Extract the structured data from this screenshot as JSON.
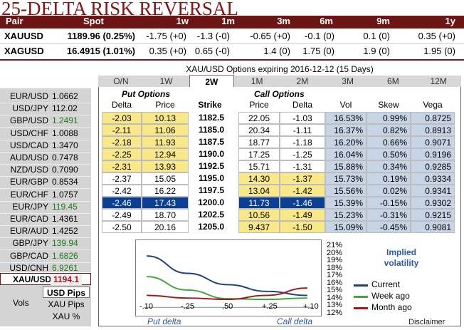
{
  "title": "25-DELTA RISK REVERSAL",
  "rr": {
    "headers": [
      "Pair",
      "Spot",
      "1w",
      "1m",
      "3m",
      "6m",
      "9m",
      "1y"
    ],
    "rows": [
      {
        "pair": "XAUUSD",
        "spot": "1189.96 (0.25%)",
        "vals": [
          "-1.75 (+0)",
          "-1.3 (-0)",
          "-0.65 (+0)",
          "-0.1 (0)",
          "0.1 (0)",
          "0.35 (+0)"
        ]
      },
      {
        "pair": "XAGUSD",
        "spot": "16.4915 (1.01%)",
        "vals": [
          "0.35 (+0)",
          "0.65 (-0)",
          "1.4 (0)",
          "1.75 (0)",
          "1.9 (0)",
          "1.95 (0)"
        ]
      }
    ]
  },
  "currencies": [
    {
      "pair": "EUR/USD",
      "value": "1.0662",
      "color": "#000000"
    },
    {
      "pair": "USD/JPY",
      "value": "112.02",
      "color": "#000000"
    },
    {
      "pair": "GBP/USD",
      "value": "1.2491",
      "color": "#1c7a1c"
    },
    {
      "pair": "USD/CHF",
      "value": "1.0088",
      "color": "#000000"
    },
    {
      "pair": "USD/CAD",
      "value": "1.3470",
      "color": "#000000"
    },
    {
      "pair": "AUD/USD",
      "value": "0.7478",
      "color": "#000000"
    },
    {
      "pair": "NZD/USD",
      "value": "0.7090",
      "color": "#000000"
    },
    {
      "pair": "EUR/GBP",
      "value": "0.8534",
      "color": "#000000"
    },
    {
      "pair": "EUR/CHF",
      "value": "1.0757",
      "color": "#000000"
    },
    {
      "pair": "EUR/JPY",
      "value": "119.45",
      "color": "#1c7a1c"
    },
    {
      "pair": "EUR/CAD",
      "value": "1.4361",
      "color": "#000000"
    },
    {
      "pair": "EUR/AUD",
      "value": "1.4252",
      "color": "#000000"
    },
    {
      "pair": "GBP/JPY",
      "value": "139.94",
      "color": "#1c7a1c"
    },
    {
      "pair": "GBP/CAD",
      "value": "1.6826",
      "color": "#1c7a1c"
    },
    {
      "pair": "USD/CNH",
      "value": "6.9261",
      "color": "#1c7a1c"
    }
  ],
  "xau": {
    "pair": "XAU/USD",
    "value": "1194.1"
  },
  "vols": {
    "label": "Vols",
    "options": [
      "USD Pips",
      "XAU Pips",
      "XAU %"
    ],
    "selected": 0
  },
  "options": {
    "title": "XAU/USD Options expiring 2016-12-12 (15 Days)",
    "tabs": [
      "O/N",
      "1W",
      "2W",
      "1M",
      "2M",
      "3M",
      "6M",
      "12M"
    ],
    "active_tab": 2,
    "put_label": "Put Options",
    "call_label": "Call Options",
    "col_headers": {
      "delta": "Delta",
      "price": "Price",
      "strike": "Strike",
      "call_price": "Price",
      "call_delta": "Delta",
      "vol": "Vol",
      "skew": "Skew",
      "vega": "Vega"
    },
    "selected_row": 7,
    "rows": [
      {
        "pdelta": "-2.03",
        "pprice": "10.13",
        "strike": "1182.5",
        "cprice": "22.05",
        "cdelta": "-1.03",
        "vol": "16.53%",
        "skew": "0.99%",
        "vega": "0.8725",
        "putHL": true,
        "callHL": false
      },
      {
        "pdelta": "-2.11",
        "pprice": "11.06",
        "strike": "1185.0",
        "cprice": "20.34",
        "cdelta": "-1.11",
        "vol": "16.37%",
        "skew": "0.82%",
        "vega": "0.8913",
        "putHL": true,
        "callHL": false
      },
      {
        "pdelta": "-2.18",
        "pprice": "11.93",
        "strike": "1187.5",
        "cprice": "18.77",
        "cdelta": "-1.18",
        "vol": "16.20%",
        "skew": "0.66%",
        "vega": "0.9071",
        "putHL": true,
        "callHL": false
      },
      {
        "pdelta": "-2.25",
        "pprice": "12.94",
        "strike": "1190.0",
        "cprice": "17.25",
        "cdelta": "-1.25",
        "vol": "16.04%",
        "skew": "0.50%",
        "vega": "0.9196",
        "putHL": true,
        "callHL": false
      },
      {
        "pdelta": "-2.31",
        "pprice": "13.93",
        "strike": "1192.5",
        "cprice": "15.71",
        "cdelta": "-1.31",
        "vol": "15.88%",
        "skew": "0.34%",
        "vega": "0.9285",
        "putHL": true,
        "callHL": false
      },
      {
        "pdelta": "-2.37",
        "pprice": "15.05",
        "strike": "1195.0",
        "cprice": "14.30",
        "cdelta": "-1.37",
        "vol": "15.73%",
        "skew": "0.19%",
        "vega": "0.9334",
        "putHL": false,
        "callHL": true
      },
      {
        "pdelta": "-2.42",
        "pprice": "16.22",
        "strike": "1197.5",
        "cprice": "13.04",
        "cdelta": "-1.42",
        "vol": "15.56%",
        "skew": "0.02%",
        "vega": "0.9341",
        "putHL": false,
        "callHL": true
      },
      {
        "pdelta": "-2.46",
        "pprice": "17.43",
        "strike": "1200.0",
        "cprice": "11.73",
        "cdelta": "-1.46",
        "vol": "15.39%",
        "skew": "-0.15%",
        "vega": "0.9302",
        "putHL": false,
        "callHL": true
      },
      {
        "pdelta": "-2.49",
        "pprice": "18.70",
        "strike": "1202.5",
        "cprice": "10.56",
        "cdelta": "-1.49",
        "vol": "15.23%",
        "skew": "-0.31%",
        "vega": "0.9215",
        "putHL": false,
        "callHL": true
      },
      {
        "pdelta": "-2.50",
        "pprice": "20.16",
        "strike": "1205.0",
        "cprice": "9.437",
        "cdelta": "-1.50",
        "vol": "15.09%",
        "skew": "-0.45%",
        "vega": "0.9081",
        "putHL": false,
        "callHL": true
      }
    ]
  },
  "chart_data": {
    "type": "line",
    "x": [
      -0.1,
      -0.25,
      0.5,
      0.25,
      0.1
    ],
    "x_tick_labels": [
      "-.10",
      "-.25",
      ".50",
      "+.25",
      "+.10"
    ],
    "y_tick_labels": [
      "21%",
      "20%",
      "19%",
      "18%",
      "17%",
      "16%",
      "15%",
      "14%",
      "13%",
      "12%"
    ],
    "ylim": [
      12,
      21
    ],
    "xlabel_left": "Put delta",
    "xlabel_right": "Call delta",
    "legend_title": "Implied volatility",
    "series": [
      {
        "name": "Current",
        "color": "#1f3f7a",
        "values": [
          19.9,
          17.3,
          15.6,
          14.6,
          14.0
        ]
      },
      {
        "name": "Week ago",
        "color": "#3aa93a",
        "values": [
          16.8,
          14.8,
          13.5,
          13.4,
          13.6
        ]
      },
      {
        "name": "Month ago",
        "color": "#a01818",
        "values": [
          14.0,
          13.6,
          13.4,
          14.0,
          15.1
        ]
      }
    ]
  },
  "disclaimer": "Disclaimer"
}
